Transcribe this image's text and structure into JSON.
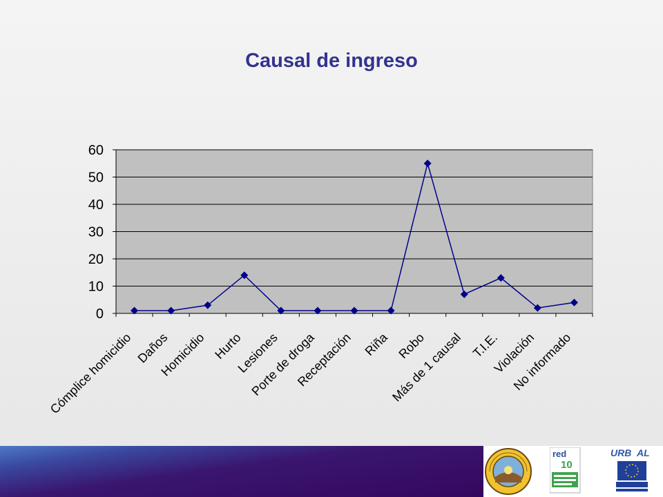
{
  "title": "Causal de ingreso",
  "chart_data": {
    "type": "line",
    "title": "Causal de ingreso",
    "categories": [
      "Cómplice homicidio",
      "Daños",
      "Homicidio",
      "Hurto",
      "Lesiones",
      "Porte de droga",
      "Receptación",
      "Riña",
      "Robo",
      "Más de 1 causal",
      "T.I.E.",
      "Violación",
      "No informado"
    ],
    "series": [
      {
        "values": [
          1,
          1,
          3,
          14,
          1,
          1,
          1,
          1,
          55,
          7,
          13,
          2,
          4
        ]
      }
    ],
    "ylim": [
      0,
      60
    ],
    "yticks": [
      0,
      10,
      20,
      30,
      40,
      50,
      60
    ],
    "grid": true,
    "legend": "none",
    "colors": {
      "plot_bg": "#c0c0c0",
      "line": "#00008b",
      "marker": "#00008b"
    }
  },
  "logos": [
    {
      "name": "municipalidad-seal-logo",
      "text": "MUNICIPALIDAD DE …"
    },
    {
      "name": "red-10-logo",
      "text": "red 10"
    },
    {
      "name": "urbal-europeaid-logo",
      "text": "URB AL EUROPEAID"
    }
  ]
}
